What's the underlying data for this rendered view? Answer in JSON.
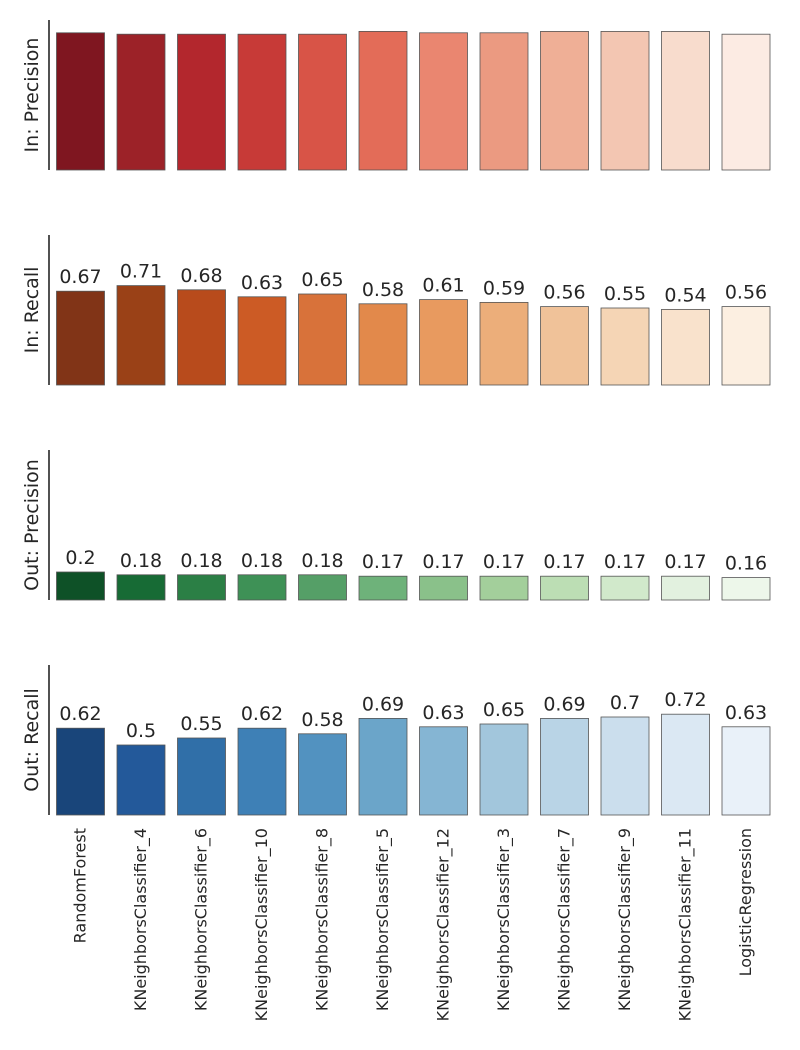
{
  "chart_data": {
    "type": "bar",
    "categories": [
      "RandomForest",
      "KNeighborsClassifier_4",
      "KNeighborsClassifier_6",
      "KNeighborsClassifier_10",
      "KNeighborsClassifier_8",
      "KNeighborsClassifier_5",
      "KNeighborsClassifier_12",
      "KNeighborsClassifier_3",
      "KNeighborsClassifier_7",
      "KNeighborsClassifier_9",
      "KNeighborsClassifier_11",
      "LogisticRegression"
    ],
    "ylim": [
      0,
      0.8
    ],
    "panels": [
      {
        "ylabel": "In: Precision",
        "values": [
          0.98,
          0.97,
          0.97,
          0.97,
          0.97,
          0.99,
          0.98,
          0.98,
          0.99,
          0.99,
          0.99,
          0.97
        ],
        "show_labels": false,
        "colors": [
          "#7f1620",
          "#9c2228",
          "#b3272d",
          "#c73a37",
          "#d85447",
          "#e36c58",
          "#ea8670",
          "#eb9a81",
          "#efaf96",
          "#f3c6b2",
          "#f8dccd",
          "#fcebe3"
        ]
      },
      {
        "ylabel": "In: Recall",
        "values": [
          0.67,
          0.71,
          0.68,
          0.63,
          0.65,
          0.58,
          0.61,
          0.59,
          0.56,
          0.55,
          0.54,
          0.56
        ],
        "labels": [
          "0.67",
          "0.71",
          "0.68",
          "0.63",
          "0.65",
          "0.58",
          "0.61",
          "0.59",
          "0.56",
          "0.55",
          "0.54",
          "0.56"
        ],
        "show_labels": true,
        "colors": [
          "#813417",
          "#9a4117",
          "#b84b1c",
          "#cc5b25",
          "#d8723a",
          "#e2894b",
          "#e89a5f",
          "#ecae7a",
          "#f0c299",
          "#f5d5b5",
          "#f9e2cc",
          "#fcefe1"
        ]
      },
      {
        "ylabel": "Out: Precision",
        "values": [
          0.2,
          0.18,
          0.18,
          0.18,
          0.18,
          0.17,
          0.17,
          0.17,
          0.17,
          0.17,
          0.17,
          0.16
        ],
        "labels": [
          "0.2",
          "0.18",
          "0.18",
          "0.18",
          "0.18",
          "0.17",
          "0.17",
          "0.17",
          "0.17",
          "0.17",
          "0.17",
          "0.16"
        ],
        "show_labels": true,
        "colors": [
          "#0e5127",
          "#176b35",
          "#2b7f45",
          "#3e9156",
          "#559f67",
          "#6eb27a",
          "#8ac18a",
          "#a3cf9b",
          "#bcdeb4",
          "#d1e9cb",
          "#e2f1df",
          "#edf7ea"
        ]
      },
      {
        "ylabel": "Out: Recall",
        "values": [
          0.62,
          0.5,
          0.55,
          0.62,
          0.58,
          0.69,
          0.63,
          0.65,
          0.69,
          0.7,
          0.72,
          0.63
        ],
        "labels": [
          "0.62",
          "0.5",
          "0.55",
          "0.62",
          "0.58",
          "0.69",
          "0.63",
          "0.65",
          "0.69",
          "0.7",
          "0.72",
          "0.63"
        ],
        "show_labels": true,
        "colors": [
          "#19457a",
          "#23599a",
          "#306fa8",
          "#3e80b6",
          "#5292c0",
          "#6ba5c9",
          "#85b5d3",
          "#a2c6dc",
          "#b9d4e6",
          "#cbdeed",
          "#dbe8f3",
          "#e9f1f9"
        ]
      }
    ]
  }
}
